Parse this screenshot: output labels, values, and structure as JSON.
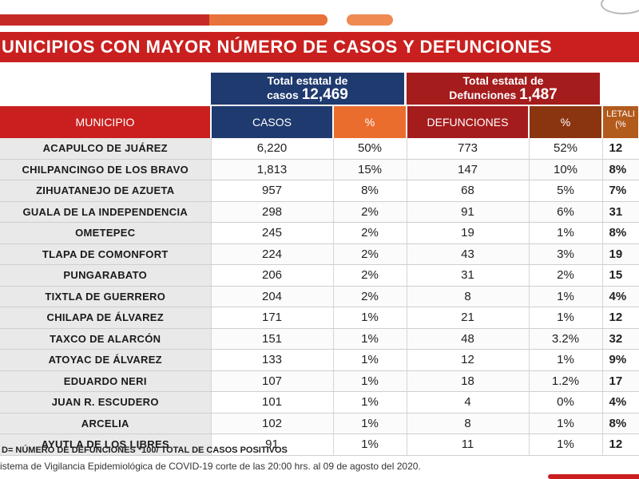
{
  "title": "UNICIPIOS CON MAYOR NÚMERO  DE CASOS Y DEFUNCIONES",
  "totals": {
    "casos_label": "Total estatal de",
    "casos_label2": "casos",
    "casos_value": "12,469",
    "def_label": "Total estatal de",
    "def_label2": "Defunciones",
    "def_value": "1,487"
  },
  "columns": {
    "municipio": "MUNICIPIO",
    "casos": "CASOS",
    "pct1": "%",
    "defunciones": "DEFUNCIONES",
    "pct2": "%",
    "letalidad": "LETALI",
    "letalidad2": "(%"
  },
  "rows": [
    {
      "municipio": "ACAPULCO DE JUÁREZ",
      "casos": "6,220",
      "pct_casos": "50%",
      "defunciones": "773",
      "pct_def": "52%",
      "letalidad": "12"
    },
    {
      "municipio": "CHILPANCINGO DE LOS BRAVO",
      "casos": "1,813",
      "pct_casos": "15%",
      "defunciones": "147",
      "pct_def": "10%",
      "letalidad": "8%"
    },
    {
      "municipio": "ZIHUATANEJO DE AZUETA",
      "casos": "957",
      "pct_casos": "8%",
      "defunciones": "68",
      "pct_def": "5%",
      "letalidad": "7%"
    },
    {
      "municipio": "GUALA DE LA INDEPENDENCIA",
      "casos": "298",
      "pct_casos": "2%",
      "defunciones": "91",
      "pct_def": "6%",
      "letalidad": "31"
    },
    {
      "municipio": "OMETEPEC",
      "casos": "245",
      "pct_casos": "2%",
      "defunciones": "19",
      "pct_def": "1%",
      "letalidad": "8%"
    },
    {
      "municipio": "TLAPA DE COMONFORT",
      "casos": "224",
      "pct_casos": "2%",
      "defunciones": "43",
      "pct_def": "3%",
      "letalidad": "19"
    },
    {
      "municipio": "PUNGARABATO",
      "casos": "206",
      "pct_casos": "2%",
      "defunciones": "31",
      "pct_def": "2%",
      "letalidad": "15"
    },
    {
      "municipio": "TIXTLA DE GUERRERO",
      "casos": "204",
      "pct_casos": "2%",
      "defunciones": "8",
      "pct_def": "1%",
      "letalidad": "4%"
    },
    {
      "municipio": "CHILAPA DE ÁLVAREZ",
      "casos": "171",
      "pct_casos": "1%",
      "defunciones": "21",
      "pct_def": "1%",
      "letalidad": "12"
    },
    {
      "municipio": "TAXCO DE ALARCÓN",
      "casos": "151",
      "pct_casos": "1%",
      "defunciones": "48",
      "pct_def": "3.2%",
      "letalidad": "32"
    },
    {
      "municipio": "ATOYAC DE ÁLVAREZ",
      "casos": "133",
      "pct_casos": "1%",
      "defunciones": "12",
      "pct_def": "1%",
      "letalidad": "9%"
    },
    {
      "municipio": "EDUARDO NERI",
      "casos": "107",
      "pct_casos": "1%",
      "defunciones": "18",
      "pct_def": "1.2%",
      "letalidad": "17"
    },
    {
      "municipio": "JUAN R. ESCUDERO",
      "casos": "101",
      "pct_casos": "1%",
      "defunciones": "4",
      "pct_def": "0%",
      "letalidad": "4%"
    },
    {
      "municipio": "ARCELIA",
      "casos": "102",
      "pct_casos": "1%",
      "defunciones": "8",
      "pct_def": "1%",
      "letalidad": "8%"
    },
    {
      "municipio": "AYUTLA DE LOS LIBRES",
      "casos": "91",
      "pct_casos": "1%",
      "defunciones": "11",
      "pct_def": "1%",
      "letalidad": "12"
    }
  ],
  "footnote": "D= NÚMERO DE DEFUNCIONES *100/ TOTAL DE CASOS POSITIVOS",
  "source": "istema de Vigilancia Epidemiológica de COVID-19 corte de las 20:00 hrs. al 09 de agosto del 2020.",
  "colors": {
    "title_red": "#c9201f",
    "navy": "#1f3a6e",
    "orange": "#ea6d2e",
    "dark_red": "#a51c1d",
    "brown": "#8b3510"
  }
}
